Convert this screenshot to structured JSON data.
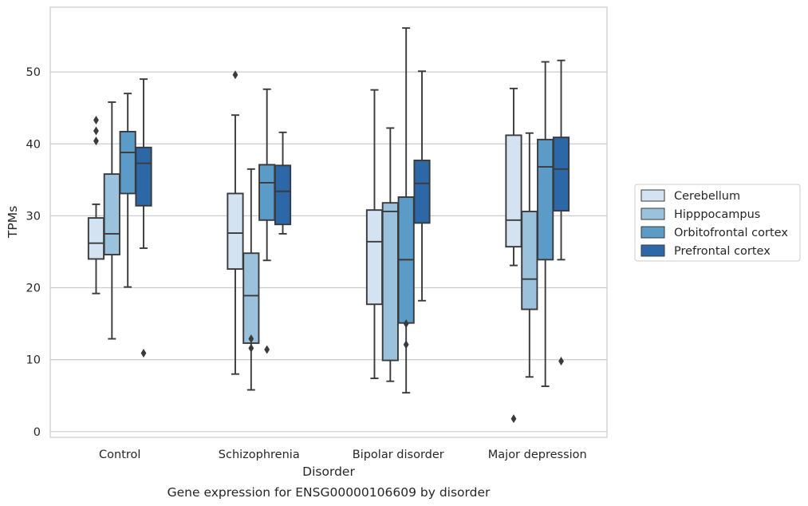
{
  "caption": "Gene expression for ENSG00000106609 by disorder",
  "chart_data": {
    "type": "boxplot",
    "xlabel": "Disorder",
    "ylabel": "TPMs",
    "ylim": [
      -0.8,
      59
    ],
    "yticks": [
      0,
      10,
      20,
      30,
      40,
      50
    ],
    "grid": "horizontal",
    "legend_position": "right",
    "categories": [
      "Control",
      "Schizophrenia",
      "Bipolar disorder",
      "Major depression"
    ],
    "series": [
      {
        "name": "Cerebellum",
        "color": "#d4e3f2",
        "boxes": [
          {
            "whislo": 19.2,
            "q1": 24.0,
            "med": 26.2,
            "q3": 29.7,
            "whishi": 31.6,
            "fliers": [
              40.4,
              41.8,
              43.3
            ]
          },
          {
            "whislo": 8.0,
            "q1": 22.6,
            "med": 27.6,
            "q3": 33.1,
            "whishi": 44.0,
            "fliers": [
              49.6
            ]
          },
          {
            "whislo": 7.4,
            "q1": 17.7,
            "med": 26.4,
            "q3": 30.8,
            "whishi": 47.5,
            "fliers": []
          },
          {
            "whislo": 23.1,
            "q1": 25.7,
            "med": 29.4,
            "q3": 41.2,
            "whishi": 47.7,
            "fliers": [
              1.8
            ]
          }
        ]
      },
      {
        "name": "Hipppocampus",
        "color": "#9bc2dc",
        "boxes": [
          {
            "whislo": 12.9,
            "q1": 24.6,
            "med": 27.5,
            "q3": 35.8,
            "whishi": 45.8,
            "fliers": []
          },
          {
            "whislo": 5.8,
            "q1": 12.3,
            "med": 18.9,
            "q3": 24.8,
            "whishi": 36.5,
            "fliers": [
              11.6,
              12.9
            ]
          },
          {
            "whislo": 7.0,
            "q1": 9.9,
            "med": 30.6,
            "q3": 31.8,
            "whishi": 42.2,
            "fliers": []
          },
          {
            "whislo": 7.6,
            "q1": 17.0,
            "med": 21.2,
            "q3": 30.6,
            "whishi": 41.5,
            "fliers": []
          }
        ]
      },
      {
        "name": "Orbitofrontal cortex",
        "color": "#5a9bc8",
        "boxes": [
          {
            "whislo": 20.1,
            "q1": 33.1,
            "med": 38.8,
            "q3": 41.7,
            "whishi": 47.0,
            "fliers": []
          },
          {
            "whislo": 23.8,
            "q1": 29.4,
            "med": 34.6,
            "q3": 37.1,
            "whishi": 47.6,
            "fliers": [
              11.4
            ]
          },
          {
            "whislo": 5.4,
            "q1": 15.1,
            "med": 23.9,
            "q3": 32.6,
            "whishi": 56.1,
            "fliers": [
              12.1,
              15.0
            ]
          },
          {
            "whislo": 6.3,
            "q1": 23.9,
            "med": 36.8,
            "q3": 40.6,
            "whishi": 51.4,
            "fliers": []
          }
        ]
      },
      {
        "name": "Prefrontal cortex",
        "color": "#2c68a8",
        "boxes": [
          {
            "whislo": 25.5,
            "q1": 31.4,
            "med": 37.3,
            "q3": 39.5,
            "whishi": 49.0,
            "fliers": [
              10.9
            ]
          },
          {
            "whislo": 27.5,
            "q1": 28.8,
            "med": 33.4,
            "q3": 37.0,
            "whishi": 41.6,
            "fliers": []
          },
          {
            "whislo": 18.2,
            "q1": 29.0,
            "med": 34.5,
            "q3": 37.7,
            "whishi": 50.1,
            "fliers": []
          },
          {
            "whislo": 23.9,
            "q1": 30.7,
            "med": 36.5,
            "q3": 40.9,
            "whishi": 51.6,
            "fliers": [
              9.8
            ]
          }
        ]
      }
    ]
  }
}
